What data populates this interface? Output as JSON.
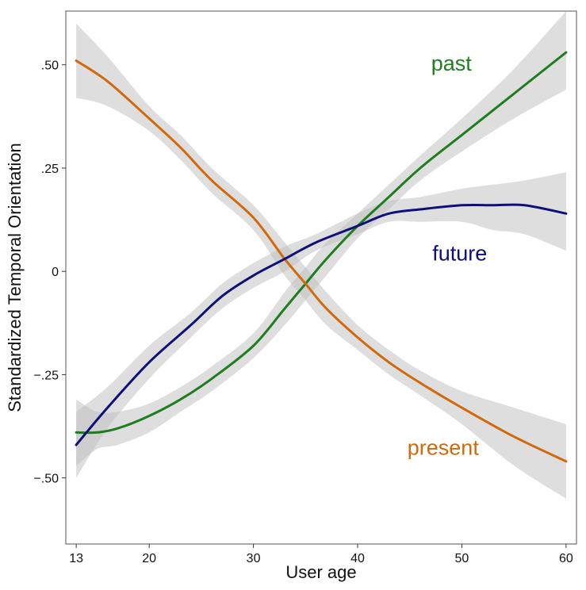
{
  "chart_data": {
    "type": "line",
    "title": "",
    "xlabel": "User age",
    "ylabel": "Standardized Temporal Orientation",
    "xlim": [
      12,
      61
    ],
    "ylim": [
      -0.66,
      0.63
    ],
    "grid": false,
    "x_ticks": [
      13,
      20,
      30,
      40,
      50,
      60
    ],
    "x_tick_labels": [
      "13",
      "20",
      "30",
      "40",
      "50",
      "60"
    ],
    "y_ticks": [
      0.5,
      0.25,
      0,
      -0.25,
      -0.5
    ],
    "y_tick_labels": [
      ".50",
      ".25",
      "0",
      "−.25",
      "−.50"
    ],
    "series": [
      {
        "name": "past",
        "color": "#1e7d1e",
        "label_position": [
          49,
          0.5
        ],
        "x": [
          13,
          15,
          17,
          20,
          23,
          26,
          30,
          33,
          35,
          37,
          40,
          43,
          46,
          50,
          55,
          60
        ],
        "y": [
          -0.39,
          -0.39,
          -0.38,
          -0.35,
          -0.31,
          -0.26,
          -0.18,
          -0.09,
          -0.03,
          0.03,
          0.11,
          0.18,
          0.25,
          0.33,
          0.43,
          0.53
        ],
        "ci_upper": [
          -0.31,
          -0.34,
          -0.34,
          -0.32,
          -0.28,
          -0.23,
          -0.15,
          -0.05,
          0.01,
          0.07,
          0.14,
          0.21,
          0.28,
          0.37,
          0.49,
          0.63
        ],
        "ci_lower": [
          -0.47,
          -0.43,
          -0.42,
          -0.39,
          -0.34,
          -0.29,
          -0.21,
          -0.13,
          -0.07,
          -0.01,
          0.08,
          0.15,
          0.22,
          0.29,
          0.37,
          0.44
        ]
      },
      {
        "name": "present",
        "color": "#d2690a",
        "label_position": [
          48.2,
          -0.43
        ],
        "x": [
          13,
          16,
          20,
          23,
          26,
          30,
          33,
          35,
          37,
          40,
          43,
          46,
          50,
          55,
          60
        ],
        "y": [
          0.51,
          0.46,
          0.37,
          0.3,
          0.22,
          0.13,
          0.03,
          -0.03,
          -0.09,
          -0.16,
          -0.22,
          -0.27,
          -0.33,
          -0.4,
          -0.46
        ],
        "ci_upper": [
          0.6,
          0.52,
          0.4,
          0.33,
          0.25,
          0.16,
          0.07,
          0.01,
          -0.05,
          -0.13,
          -0.19,
          -0.24,
          -0.29,
          -0.33,
          -0.37
        ],
        "ci_lower": [
          0.42,
          0.4,
          0.34,
          0.27,
          0.19,
          0.1,
          -0.01,
          -0.07,
          -0.13,
          -0.19,
          -0.25,
          -0.3,
          -0.37,
          -0.47,
          -0.55
        ]
      },
      {
        "name": "future",
        "color": "#0f0f78",
        "label_position": [
          49.8,
          0.04
        ],
        "x": [
          13,
          16,
          20,
          24,
          27,
          30,
          33,
          36,
          40,
          43,
          46,
          50,
          53,
          56,
          60
        ],
        "y": [
          -0.42,
          -0.33,
          -0.22,
          -0.13,
          -0.06,
          -0.01,
          0.03,
          0.07,
          0.11,
          0.14,
          0.15,
          0.16,
          0.16,
          0.16,
          0.14
        ],
        "ci_upper": [
          -0.34,
          -0.28,
          -0.18,
          -0.1,
          -0.03,
          0.02,
          0.06,
          0.09,
          0.14,
          0.17,
          0.18,
          0.2,
          0.21,
          0.22,
          0.24
        ],
        "ci_lower": [
          -0.5,
          -0.38,
          -0.26,
          -0.16,
          -0.09,
          -0.04,
          0.0,
          0.05,
          0.09,
          0.12,
          0.12,
          0.12,
          0.1,
          0.09,
          0.05
        ]
      }
    ]
  }
}
